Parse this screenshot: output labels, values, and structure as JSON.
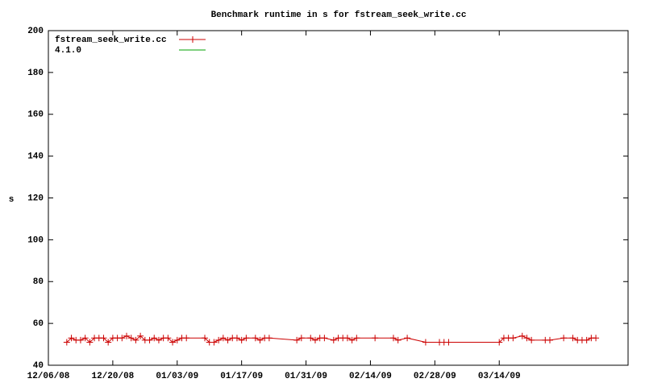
{
  "chart_data": {
    "type": "line",
    "title": "Benchmark runtime in s for fstream_seek_write.cc",
    "y_label": "s",
    "xlim": [
      "12/06/08",
      "04/11/09"
    ],
    "xticks": [
      "12/06/08",
      "12/20/08",
      "01/03/09",
      "01/17/09",
      "01/31/09",
      "02/14/09",
      "02/28/09",
      "03/14/09"
    ],
    "ylim": [
      40,
      200
    ],
    "yticks": [
      40,
      60,
      80,
      100,
      120,
      140,
      160,
      180,
      200
    ],
    "grid": false,
    "legend": "top-left",
    "series": [
      {
        "name": "fstream_seek_write.cc",
        "color": "#cc0000",
        "marker": "+",
        "x": [
          "12/10/08",
          "12/11/08",
          "12/12/08",
          "12/13/08",
          "12/14/08",
          "12/15/08",
          "12/16/08",
          "12/17/08",
          "12/18/08",
          "12/19/08",
          "12/20/08",
          "12/21/08",
          "12/22/08",
          "12/23/08",
          "12/24/08",
          "12/25/08",
          "12/26/08",
          "12/27/08",
          "12/28/08",
          "12/29/08",
          "12/30/08",
          "12/31/08",
          "01/01/09",
          "01/02/09",
          "01/03/09",
          "01/04/09",
          "01/05/09",
          "01/09/09",
          "01/10/09",
          "01/11/09",
          "01/12/09",
          "01/13/09",
          "01/14/09",
          "01/15/09",
          "01/16/09",
          "01/17/09",
          "01/18/09",
          "01/20/09",
          "01/21/09",
          "01/22/09",
          "01/23/09",
          "01/29/09",
          "01/30/09",
          "02/01/09",
          "02/02/09",
          "02/03/09",
          "02/04/09",
          "02/06/09",
          "02/07/09",
          "02/08/09",
          "02/09/09",
          "02/10/09",
          "02/11/09",
          "02/15/09",
          "02/19/09",
          "02/20/09",
          "02/22/09",
          "02/26/09",
          "03/01/09",
          "03/02/09",
          "03/03/09",
          "03/14/09",
          "03/15/09",
          "03/16/09",
          "03/17/09",
          "03/19/09",
          "03/20/09",
          "03/21/09",
          "03/24/09",
          "03/25/09",
          "03/28/09",
          "03/30/09",
          "03/31/09",
          "04/01/09",
          "04/02/09",
          "04/03/09",
          "04/04/09"
        ],
        "values": [
          51,
          53,
          52,
          52,
          53,
          51,
          53,
          53,
          53,
          51,
          53,
          53,
          53,
          54,
          53,
          52,
          54,
          52,
          52,
          53,
          52,
          53,
          53,
          51,
          52,
          53,
          53,
          53,
          51,
          51,
          52,
          53,
          52,
          53,
          53,
          52,
          53,
          53,
          52,
          53,
          53,
          52,
          53,
          53,
          52,
          53,
          53,
          52,
          53,
          53,
          53,
          52,
          53,
          53,
          53,
          52,
          53,
          51,
          51,
          51,
          51,
          51,
          53,
          53,
          53,
          54,
          53,
          52,
          52,
          52,
          53,
          53,
          52,
          52,
          52,
          53,
          53
        ]
      },
      {
        "name": "4.1.0",
        "color": "#00a000",
        "x": [],
        "values": []
      }
    ]
  }
}
